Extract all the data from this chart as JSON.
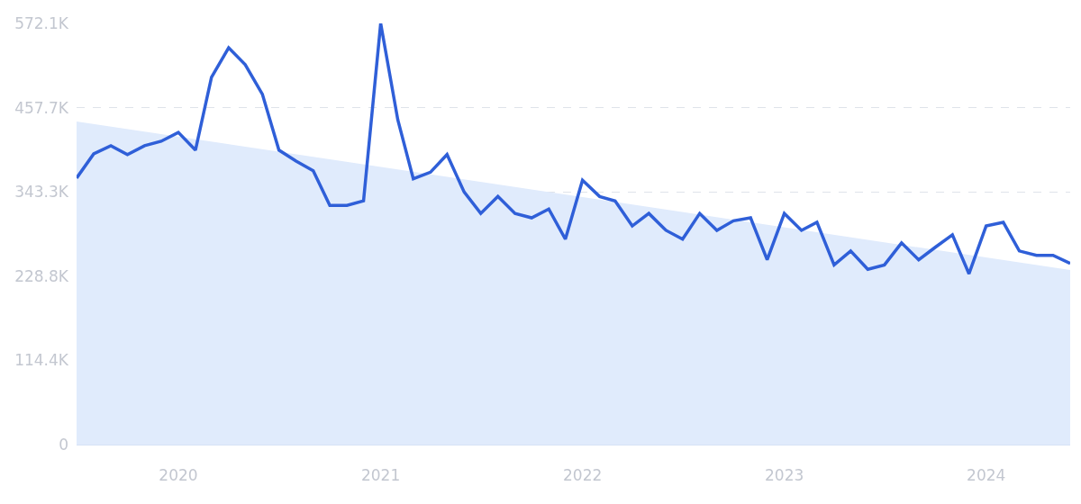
{
  "chart_data": {
    "type": "line",
    "x": [
      "2019-07",
      "2019-08",
      "2019-09",
      "2019-10",
      "2019-11",
      "2019-12",
      "2020-01",
      "2020-02",
      "2020-03",
      "2020-04",
      "2020-05",
      "2020-06",
      "2020-07",
      "2020-08",
      "2020-09",
      "2020-10",
      "2020-11",
      "2020-12",
      "2021-01",
      "2021-02",
      "2021-03",
      "2021-04",
      "2021-05",
      "2021-06",
      "2021-07",
      "2021-08",
      "2021-09",
      "2021-10",
      "2021-11",
      "2021-12",
      "2022-01",
      "2022-02",
      "2022-03",
      "2022-04",
      "2022-05",
      "2022-06",
      "2022-07",
      "2022-08",
      "2022-09",
      "2022-10",
      "2022-11",
      "2022-12",
      "2023-01",
      "2023-02",
      "2023-03",
      "2023-04",
      "2023-05",
      "2023-06",
      "2023-07",
      "2023-08",
      "2023-09",
      "2023-10",
      "2023-11",
      "2023-12",
      "2024-01",
      "2024-02",
      "2024-03",
      "2024-04",
      "2024-05",
      "2024-06"
    ],
    "series": [
      {
        "type": "area",
        "x": [
          "2019-07",
          "2024-06"
        ],
        "color": "#e0ebfc",
        "values": [
          439000,
          237000
        ]
      },
      {
        "color": "#2f5fd8",
        "values": [
          362000,
          395000,
          406000,
          394000,
          406000,
          412000,
          424000,
          400000,
          499000,
          539000,
          516000,
          476000,
          400000,
          385000,
          372000,
          325000,
          325000,
          331000,
          572100,
          441000,
          361000,
          370000,
          394000,
          343000,
          314000,
          337000,
          314000,
          308000,
          320000,
          279000,
          359000,
          337000,
          331000,
          297000,
          314000,
          291000,
          279000,
          314000,
          291000,
          304000,
          308000,
          251000,
          314000,
          291000,
          302000,
          244000,
          263000,
          238000,
          244000,
          274000,
          251000,
          268000,
          285000,
          232000,
          297000,
          302000,
          263000,
          257000,
          257000,
          246000
        ]
      }
    ],
    "xlim": [
      "2019-07",
      "2024-06"
    ],
    "xticks": [
      "2020",
      "2021",
      "2022",
      "2023",
      "2024"
    ],
    "ylim": [
      0,
      572100
    ],
    "yticks": [
      0,
      {
        "value": 114400,
        "label": "114.4K"
      },
      {
        "value": 228800,
        "label": "228.8K"
      },
      {
        "value": 343300,
        "label": "343.3K"
      },
      {
        "value": 457700,
        "label": "457.7K"
      },
      {
        "value": 572100,
        "label": "572.1K"
      }
    ],
    "grid": "y"
  }
}
